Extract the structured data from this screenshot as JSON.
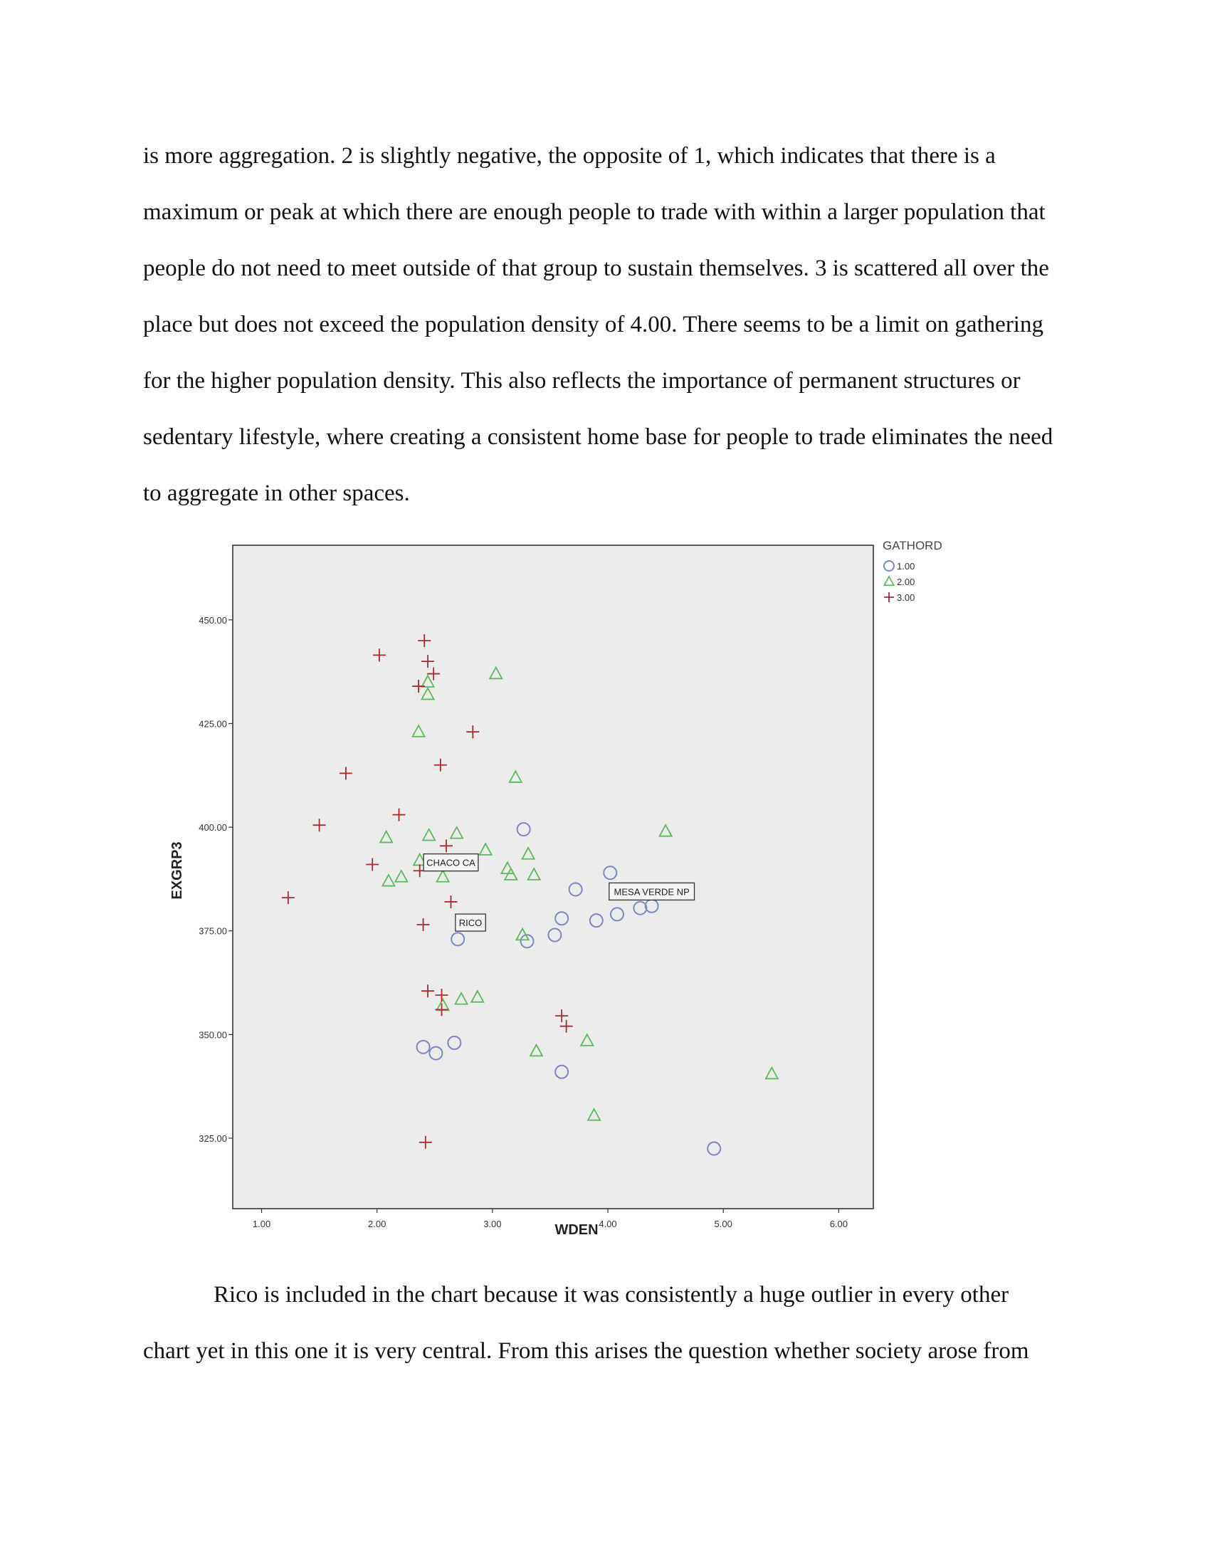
{
  "paragraph1": {
    "lines": [
      "is more aggregation. 2 is slightly negative, the opposite of 1, which indicates that there is a",
      "maximum or peak at which there are enough people to trade with within a larger population that",
      "people do not need to meet outside of that group to sustain themselves. 3 is scattered all over the",
      "place but does not exceed the population density of 4.00. There seems to be a limit on gathering",
      "for the higher population density. This also reflects the importance of permanent structures or",
      "sedentary lifestyle, where creating a consistent home base for people to trade eliminates the need",
      "to aggregate in other spaces."
    ]
  },
  "paragraph2": {
    "lines": [
      "Rico is included in the chart because it was consistently a huge outlier in every other",
      "chart yet in this one it is very central. From this arises the question whether society arose from"
    ]
  },
  "chart_data": {
    "type": "scatter",
    "xlabel": "WDEN",
    "ylabel": "EXGRP3",
    "xlim": [
      0.75,
      6.3
    ],
    "ylim": [
      308,
      468
    ],
    "xticks": [
      "1.00",
      "2.00",
      "3.00",
      "4.00",
      "5.00",
      "6.00"
    ],
    "yticks": [
      "325.00",
      "350.00",
      "375.00",
      "400.00",
      "425.00",
      "450.00"
    ],
    "grid": false,
    "background": "#ececec",
    "legend": {
      "title": "GATHORD",
      "placement": "top-right outside"
    },
    "series": [
      {
        "name": "1.00",
        "marker": "circle",
        "color": "#7a88c4",
        "points": [
          [
            3.27,
            399.5
          ],
          [
            4.02,
            389
          ],
          [
            3.72,
            385
          ],
          [
            4.28,
            380.5
          ],
          [
            4.38,
            381
          ],
          [
            4.08,
            379
          ],
          [
            3.6,
            378
          ],
          [
            3.9,
            377.5
          ],
          [
            2.7,
            373
          ],
          [
            3.3,
            372.5
          ],
          [
            3.54,
            374
          ],
          [
            2.4,
            347
          ],
          [
            2.51,
            345.5
          ],
          [
            2.67,
            348
          ],
          [
            3.6,
            341
          ],
          [
            4.92,
            322.5
          ]
        ]
      },
      {
        "name": "2.00",
        "marker": "triangle",
        "color": "#5cba5c",
        "points": [
          [
            3.03,
            437
          ],
          [
            2.44,
            435
          ],
          [
            2.44,
            432
          ],
          [
            2.36,
            423
          ],
          [
            3.2,
            412
          ],
          [
            2.08,
            397.5
          ],
          [
            2.45,
            398
          ],
          [
            2.69,
            398.5
          ],
          [
            4.5,
            399
          ],
          [
            2.94,
            394.5
          ],
          [
            3.31,
            393.5
          ],
          [
            2.37,
            392
          ],
          [
            3.13,
            390
          ],
          [
            3.16,
            388.5
          ],
          [
            2.1,
            387
          ],
          [
            2.21,
            388
          ],
          [
            2.57,
            388
          ],
          [
            3.36,
            388.5
          ],
          [
            3.26,
            374
          ],
          [
            2.57,
            357
          ],
          [
            2.73,
            358.5
          ],
          [
            2.87,
            359
          ],
          [
            3.38,
            346
          ],
          [
            3.82,
            348.5
          ],
          [
            5.42,
            340.5
          ],
          [
            3.88,
            330.5
          ]
        ]
      },
      {
        "name": "3.00",
        "marker": "plus",
        "color": "#a82a2a",
        "points": [
          [
            2.41,
            445
          ],
          [
            2.02,
            441.5
          ],
          [
            2.44,
            440
          ],
          [
            2.49,
            437
          ],
          [
            2.36,
            434
          ],
          [
            2.83,
            423
          ],
          [
            2.55,
            415
          ],
          [
            1.73,
            413
          ],
          [
            2.19,
            403
          ],
          [
            1.5,
            400.5
          ],
          [
            2.6,
            395.5
          ],
          [
            1.96,
            391
          ],
          [
            2.37,
            389.5
          ],
          [
            1.23,
            383
          ],
          [
            2.64,
            382
          ],
          [
            2.4,
            376.5
          ],
          [
            2.44,
            360.5
          ],
          [
            2.56,
            359.5
          ],
          [
            2.56,
            356
          ],
          [
            3.6,
            354.5
          ],
          [
            3.64,
            352
          ],
          [
            2.42,
            324
          ]
        ]
      }
    ],
    "annotations": [
      {
        "text": "CHACO CA",
        "x": 2.64,
        "y": 391.5
      },
      {
        "text": "MESA VERDE NP",
        "x": 4.38,
        "y": 384.5
      },
      {
        "text": "RICO",
        "x": 2.81,
        "y": 377
      }
    ]
  }
}
